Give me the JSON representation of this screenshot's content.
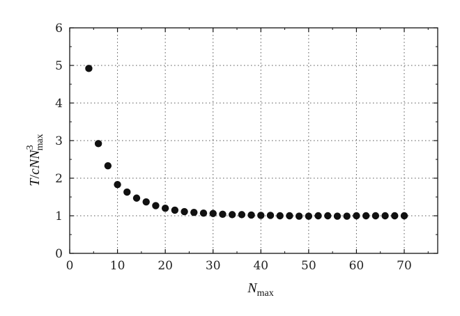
{
  "chart_data": {
    "type": "scatter",
    "xlabel": {
      "main": "N",
      "sub": "max"
    },
    "ylabel": {
      "t": "T",
      "slash": "/",
      "c": "c",
      "n": "N",
      "n2": "N",
      "sup": "3",
      "sub": "max"
    },
    "xlim": [
      0,
      77
    ],
    "ylim": [
      0,
      6
    ],
    "xticks": [
      0,
      10,
      20,
      30,
      40,
      50,
      60,
      70
    ],
    "yticks": [
      0,
      1,
      2,
      3,
      4,
      5,
      6
    ],
    "grid": true,
    "marker_color": "#111111",
    "series": [
      {
        "x": [
          4,
          6,
          8,
          10,
          12,
          14,
          16,
          18,
          20,
          22,
          24,
          26,
          28,
          30,
          32,
          34,
          36,
          38,
          40,
          42,
          44,
          46,
          48,
          50,
          52,
          54,
          56,
          58,
          60,
          62,
          64,
          66,
          68,
          70
        ],
        "y": [
          4.92,
          2.92,
          2.33,
          1.83,
          1.63,
          1.47,
          1.37,
          1.27,
          1.2,
          1.15,
          1.11,
          1.09,
          1.07,
          1.06,
          1.04,
          1.03,
          1.03,
          1.02,
          1.01,
          1.01,
          1.0,
          1.0,
          0.99,
          0.99,
          1.0,
          1.0,
          0.99,
          0.99,
          1.0,
          1.0,
          1.0,
          1.0,
          1.0,
          1.0
        ]
      }
    ]
  }
}
